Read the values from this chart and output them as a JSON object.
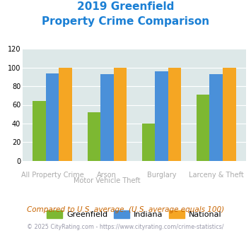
{
  "title_line1": "2019 Greenfield",
  "title_line2": "Property Crime Comparison",
  "greenfield_values": [
    64,
    52,
    40,
    71
  ],
  "indiana_values": [
    94,
    93,
    96,
    93
  ],
  "national_values": [
    100,
    100,
    100,
    100
  ],
  "greenfield_color": "#7db832",
  "indiana_color": "#4a90d9",
  "national_color": "#f5a623",
  "ylim": [
    0,
    120
  ],
  "yticks": [
    0,
    20,
    40,
    60,
    80,
    100,
    120
  ],
  "legend_labels": [
    "Greenfield",
    "Indiana",
    "National"
  ],
  "top_xlabels": [
    "",
    "Arson",
    "Burglary",
    ""
  ],
  "bottom_xlabels": [
    "All Property Crime",
    "Motor Vehicle Theft",
    "",
    "Larceny & Theft"
  ],
  "footnote1": "Compared to U.S. average. (U.S. average equals 100)",
  "footnote2": "© 2025 CityRating.com - https://www.cityrating.com/crime-statistics/",
  "bg_color": "#dde8e8",
  "title_color": "#1a7fd4",
  "footnote1_color": "#c86400",
  "footnote2_color": "#9999aa",
  "label_color": "#aaaaaa",
  "bar_width": 0.24
}
